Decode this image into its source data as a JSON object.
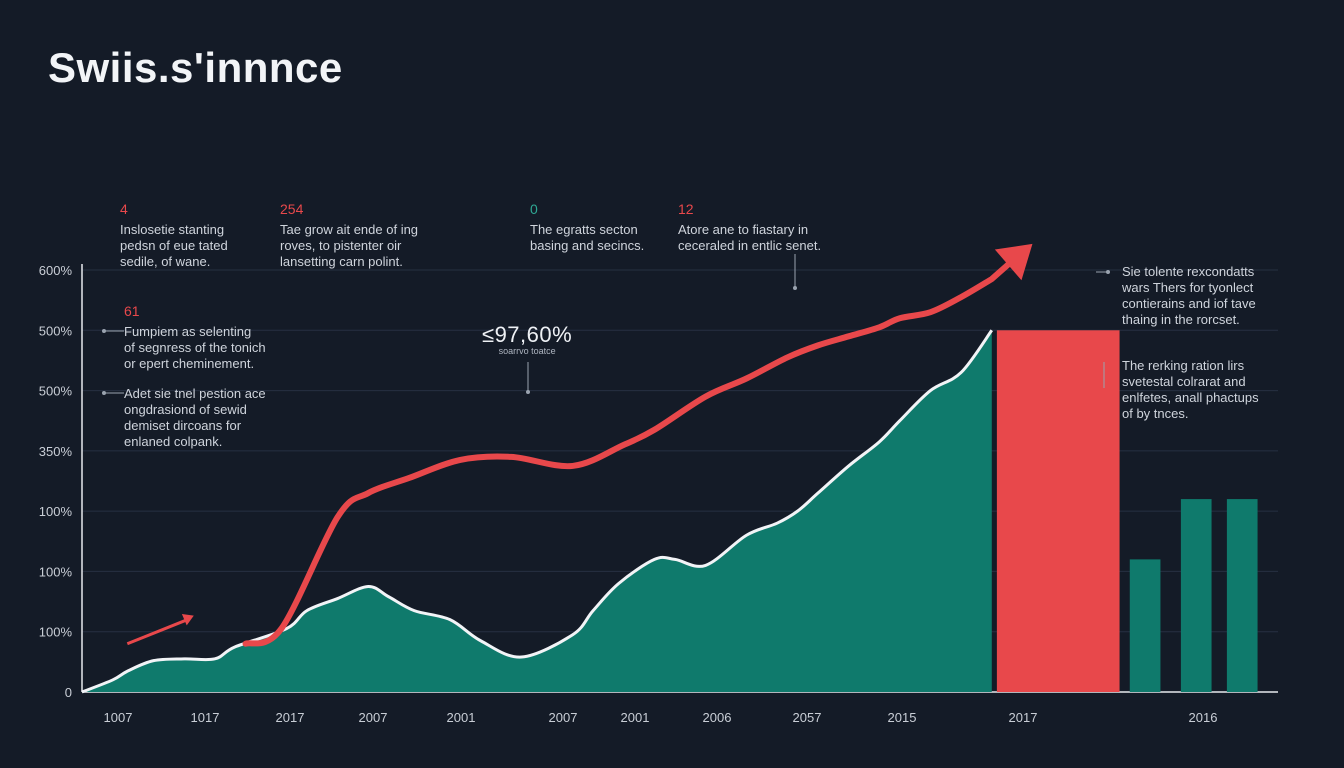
{
  "title": "Swiis.s'innnce",
  "colors": {
    "background": "#141b27",
    "accent_red": "#e8484b",
    "accent_teal": "#0f7a6c",
    "area_outline": "#f2f4f7",
    "grid": "#263042"
  },
  "top_annotations": [
    {
      "number": "4",
      "number_color": "red",
      "text": "Inslosetie stanting\npedsn of eue tated\nsedile, of wane."
    },
    {
      "number": "254",
      "number_color": "red",
      "text": "Tae grow ait ende of ing\nroves, to pistenter oir\nlansetting carn polint."
    },
    {
      "number": "0",
      "number_color": "teal",
      "text": "The egratts secton\nbasing and secincs."
    },
    {
      "number": "12",
      "number_color": "red",
      "text": "Atore ane to fiastary in\nceceraled in entlic senet."
    }
  ],
  "left_annotations": [
    {
      "number": "61",
      "text": "Fumpiem as selenting\nof segnress of the tonich\nor epert cheminement."
    },
    {
      "number": "",
      "text": "Adet sie tnel pestion ace\nongdrasiond of sewid\ndemiset dircoans for\nenlaned colpank."
    }
  ],
  "callout": {
    "value": "≤97,60%",
    "subtext": "soarrvo toatce"
  },
  "right_annotations": [
    {
      "text": "Sie tolente rexcondatts\nwars Thers for tyonlect\ncontierains and iof tave\nthaing in the rorcset."
    },
    {
      "text": "The rerking ration lirs\nsvetestal colrarat and\nenlfetes, anall phactups\nof by tnces."
    }
  ],
  "chart_data": {
    "type": "area",
    "title": "Swiis.s'innnce",
    "xlabel": "",
    "ylabel": "",
    "y_tick_labels": [
      "0",
      "100%",
      "100%",
      "100%",
      "350%",
      "500%",
      "500%",
      "600%"
    ],
    "x_tick_labels": [
      "1007",
      "1017",
      "2017",
      "2007",
      "2001",
      "2007",
      "2001",
      "2006",
      "2057",
      "2015",
      "2017",
      "2016"
    ],
    "ylim": [
      0,
      7
    ],
    "grid": true,
    "series": [
      {
        "name": "area",
        "type": "area",
        "color": "#0f7a6c",
        "x": [
          0,
          0.3,
          0.45,
          0.7,
          1.0,
          1.3,
          1.5,
          2.0,
          2.2,
          2.5,
          2.8,
          3.0,
          3.25,
          3.6,
          3.9,
          4.3,
          4.8,
          5.0,
          5.25,
          5.6,
          5.8,
          6.1,
          6.5,
          6.8,
          7.0,
          7.2,
          7.5,
          7.8,
          8.0,
          8.3,
          8.6,
          8.9
        ],
        "values": [
          0.0,
          0.2,
          0.35,
          0.52,
          0.55,
          0.55,
          0.75,
          1.05,
          1.35,
          1.55,
          1.75,
          1.58,
          1.35,
          1.2,
          0.85,
          0.58,
          0.95,
          1.35,
          1.8,
          2.2,
          2.2,
          2.1,
          2.6,
          2.8,
          3.0,
          3.3,
          3.75,
          4.15,
          4.5,
          5.0,
          5.3,
          6.0
        ]
      },
      {
        "name": "trend",
        "type": "line",
        "color": "#e8484b",
        "x": [
          1.6,
          1.95,
          2.5,
          2.8,
          3.2,
          3.7,
          4.2,
          4.8,
          5.3,
          5.6,
          6.1,
          6.5,
          6.9,
          7.2,
          7.5,
          7.8,
          8.0,
          8.3,
          8.6,
          8.9,
          9.2
        ],
        "values": [
          0.8,
          1.05,
          2.9,
          3.3,
          3.55,
          3.85,
          3.9,
          3.75,
          4.1,
          4.35,
          4.9,
          5.2,
          5.55,
          5.75,
          5.9,
          6.05,
          6.2,
          6.3,
          6.55,
          6.85,
          7.3
        ]
      },
      {
        "name": "bars",
        "type": "bar",
        "colors": [
          "#e8484b",
          "#0f7a6c",
          "#0f7a6c",
          "#0f7a6c"
        ],
        "x_start": [
          8.95,
          10.25,
          10.75,
          11.2
        ],
        "x_end": [
          10.15,
          10.55,
          11.05,
          11.5
        ],
        "values": [
          6.0,
          2.2,
          3.2,
          3.2
        ]
      }
    ],
    "small_arrow": {
      "x": [
        0.15,
        0.8
      ],
      "values": [
        0.8,
        1.1
      ]
    }
  }
}
